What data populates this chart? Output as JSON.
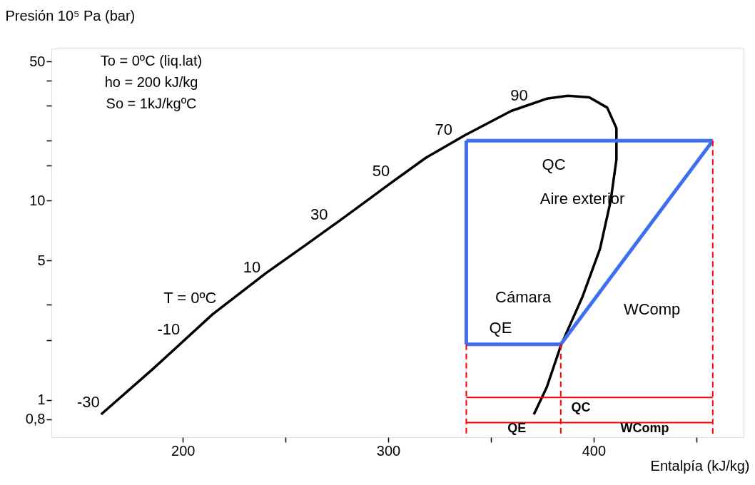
{
  "chart_data": {
    "type": "line",
    "xlabel": "Entalpía (kJ/kg)",
    "ylabel": "Presión 10⁵ Pa (bar)",
    "log": "y",
    "grid": false,
    "xlim": [
      136,
      473
    ],
    "ylim": [
      0.65,
      58
    ],
    "xticks": [
      200,
      {
        "value": 250,
        "label": null
      },
      300,
      {
        "value": 350,
        "label": null
      },
      400,
      {
        "value": 450,
        "label": null
      }
    ],
    "yticks": [
      50,
      {
        "value": 40,
        "label": null
      },
      {
        "value": 30,
        "label": null
      },
      {
        "value": 20,
        "label": null
      },
      {
        "value": 15,
        "label": null
      },
      10,
      5,
      {
        "value": 3,
        "label": null
      },
      {
        "value": 2,
        "label": null
      },
      1,
      {
        "value": 0.8,
        "label": "0,8"
      }
    ],
    "series": [
      {
        "color": "#000000",
        "x": [
          160.2,
          185.1,
          214.5,
          240.5,
          259.5,
          276.8,
          301.0,
          318.3,
          337.4,
          359.9,
          377.2,
          387.5,
          397.9,
          406.6,
          411.1,
          411.1,
          408.3,
          403.1,
          394.5,
          384.1,
          377.2,
          370.9
        ],
        "values": [
          0.846,
          1.42,
          2.69,
          4.33,
          5.96,
          8.0,
          12.2,
          16.4,
          21.3,
          28.2,
          32.5,
          33.6,
          33.0,
          29.3,
          23.1,
          16.1,
          10,
          5.73,
          3.28,
          1.88,
          1.16,
          0.846
        ]
      },
      {
        "color": "#3f6ff0",
        "x": [
          338,
          458
        ],
        "values": [
          20,
          20
        ]
      },
      {
        "color": "#3f6ff0",
        "x": [
          384,
          458
        ],
        "values": [
          1.9,
          20
        ]
      },
      {
        "color": "#3f6ff0",
        "x": [
          338,
          384
        ],
        "values": [
          1.9,
          1.9
        ]
      },
      {
        "color": "#3f6ff0",
        "x": [
          338,
          338
        ],
        "values": [
          1.9,
          20
        ]
      },
      {
        "color": "#ff0000",
        "line_style": "dashed",
        "x": [
          338,
          338
        ],
        "values": [
          1.9,
          0.65
        ]
      },
      {
        "color": "#ff0000",
        "line_style": "dashed",
        "x": [
          384,
          384
        ],
        "values": [
          1.9,
          0.65
        ]
      },
      {
        "color": "#ff0000",
        "line_style": "dashed",
        "x": [
          458,
          458
        ],
        "values": [
          20,
          0.65
        ]
      },
      {
        "color": "#ff0000",
        "x": [
          338,
          458
        ],
        "values": [
          1.03,
          1.03
        ]
      },
      {
        "color": "#ff0000",
        "x": [
          338,
          384,
          458
        ],
        "values": [
          0.77,
          0.77,
          0.77
        ]
      }
    ],
    "annotations": [
      "To = 0ºC (liq.lat)",
      "ho = 200 kJ/kg",
      "So = 1kJ/kgºC",
      "90",
      "70",
      "50",
      "30",
      "10",
      "T = 0ºC",
      "-10",
      "-30",
      "QC",
      "Aire exterior",
      "Cámara",
      "QE",
      "WComp",
      "QC",
      "QE",
      "WComp"
    ]
  }
}
